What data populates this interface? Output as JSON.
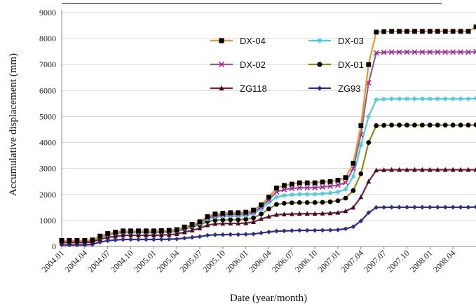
{
  "chart_data": {
    "type": "line",
    "title": "",
    "xlabel": "Date (year/month)",
    "ylabel": "Accumulative displacement (mm)",
    "ylim": [
      0,
      9000
    ],
    "yticks": [
      0,
      1000,
      2000,
      3000,
      4000,
      5000,
      6000,
      7000,
      8000,
      9000
    ],
    "xticks": [
      "2004.01",
      "2004.04",
      "2004.07",
      "2004.10",
      "2005.01",
      "2005.04",
      "2005.07",
      "2005.10",
      "2006.01",
      "2006.04",
      "2006.07",
      "2006.10",
      "2007.01",
      "2007.04",
      "2007.07",
      "2007.10",
      "2008.01",
      "2008.04"
    ],
    "grid": "horizontal",
    "legend_position": "center",
    "x": [
      0,
      1,
      2,
      3,
      4,
      5,
      6,
      7,
      8,
      9,
      10,
      11,
      12,
      13,
      14,
      15,
      16,
      17,
      18,
      19,
      20,
      21,
      22,
      23,
      24,
      25,
      26,
      27,
      28,
      29,
      30,
      31,
      32,
      33,
      34,
      35,
      36,
      37,
      38,
      39,
      40,
      41,
      42,
      43,
      44,
      45,
      46,
      47,
      48,
      49,
      50,
      51,
      52,
      53,
      54
    ],
    "series": [
      {
        "name": "DX-04",
        "color": "#f7941d",
        "marker": "square",
        "marker_color": "#000000",
        "values": [
          230,
          230,
          230,
          230,
          250,
          400,
          500,
          550,
          600,
          600,
          600,
          600,
          600,
          610,
          620,
          650,
          750,
          850,
          950,
          1150,
          1250,
          1280,
          1300,
          1300,
          1320,
          1400,
          1600,
          1900,
          2250,
          2350,
          2400,
          2450,
          2450,
          2450,
          2480,
          2500,
          2550,
          2650,
          3200,
          4650,
          7000,
          8250,
          8270,
          8280,
          8280,
          8280,
          8280,
          8280,
          8280,
          8280,
          8280,
          8280,
          8280,
          8280,
          8450
        ]
      },
      {
        "name": "DX-03",
        "color": "#4fc8d8",
        "marker": "star",
        "marker_color": "#4fc8d8",
        "values": [
          220,
          220,
          220,
          220,
          240,
          370,
          460,
          510,
          560,
          560,
          560,
          560,
          560,
          570,
          580,
          610,
          700,
          790,
          880,
          1050,
          1130,
          1160,
          1170,
          1170,
          1190,
          1260,
          1440,
          1680,
          1900,
          1960,
          1990,
          2010,
          2010,
          2010,
          2030,
          2060,
          2100,
          2200,
          2700,
          3900,
          5000,
          5650,
          5670,
          5680,
          5680,
          5680,
          5680,
          5680,
          5680,
          5680,
          5680,
          5680,
          5680,
          5680,
          5700
        ]
      },
      {
        "name": "DX-02",
        "color": "#8064a2",
        "marker": "x",
        "marker_color": "#c0148c",
        "values": [
          225,
          225,
          225,
          225,
          245,
          385,
          480,
          530,
          580,
          580,
          580,
          580,
          580,
          590,
          600,
          630,
          725,
          820,
          915,
          1100,
          1190,
          1220,
          1240,
          1240,
          1260,
          1330,
          1520,
          1800,
          2100,
          2190,
          2230,
          2260,
          2260,
          2260,
          2290,
          2320,
          2360,
          2460,
          3000,
          4300,
          6300,
          7450,
          7470,
          7480,
          7480,
          7480,
          7480,
          7480,
          7480,
          7480,
          7480,
          7480,
          7480,
          7480,
          7500
        ]
      },
      {
        "name": "DX-01",
        "color": "#8c8c14",
        "marker": "circle",
        "marker_color": "#000000",
        "values": [
          210,
          210,
          210,
          210,
          230,
          350,
          440,
          490,
          540,
          540,
          540,
          540,
          540,
          550,
          560,
          590,
          670,
          750,
          830,
          960,
          1010,
          1020,
          1030,
          1030,
          1050,
          1100,
          1250,
          1450,
          1620,
          1660,
          1680,
          1690,
          1690,
          1690,
          1700,
          1720,
          1760,
          1860,
          2150,
          2800,
          4000,
          4650,
          4660,
          4670,
          4670,
          4670,
          4670,
          4670,
          4670,
          4670,
          4670,
          4670,
          4670,
          4670,
          4680
        ]
      },
      {
        "name": "ZG118",
        "color": "#8b1a3a",
        "marker": "triangle",
        "marker_color": "#3a1020",
        "values": [
          150,
          150,
          150,
          150,
          170,
          280,
          350,
          390,
          430,
          430,
          430,
          430,
          430,
          440,
          450,
          480,
          550,
          620,
          700,
          820,
          870,
          880,
          890,
          890,
          900,
          940,
          1060,
          1150,
          1220,
          1240,
          1250,
          1260,
          1260,
          1260,
          1270,
          1280,
          1300,
          1360,
          1500,
          1900,
          2500,
          2930,
          2940,
          2950,
          2950,
          2950,
          2950,
          2950,
          2950,
          2950,
          2950,
          2950,
          2950,
          2950,
          2950
        ]
      },
      {
        "name": "ZG93",
        "color": "#2e2e8c",
        "marker": "diamond",
        "marker_color": "#2e2e8c",
        "values": [
          60,
          60,
          60,
          60,
          80,
          170,
          220,
          250,
          270,
          270,
          270,
          270,
          270,
          275,
          280,
          290,
          320,
          350,
          380,
          430,
          450,
          455,
          460,
          460,
          470,
          480,
          520,
          560,
          590,
          600,
          610,
          620,
          620,
          620,
          625,
          630,
          640,
          680,
          760,
          980,
          1300,
          1500,
          1505,
          1510,
          1510,
          1510,
          1510,
          1510,
          1510,
          1510,
          1510,
          1510,
          1510,
          1510,
          1520
        ]
      }
    ]
  }
}
